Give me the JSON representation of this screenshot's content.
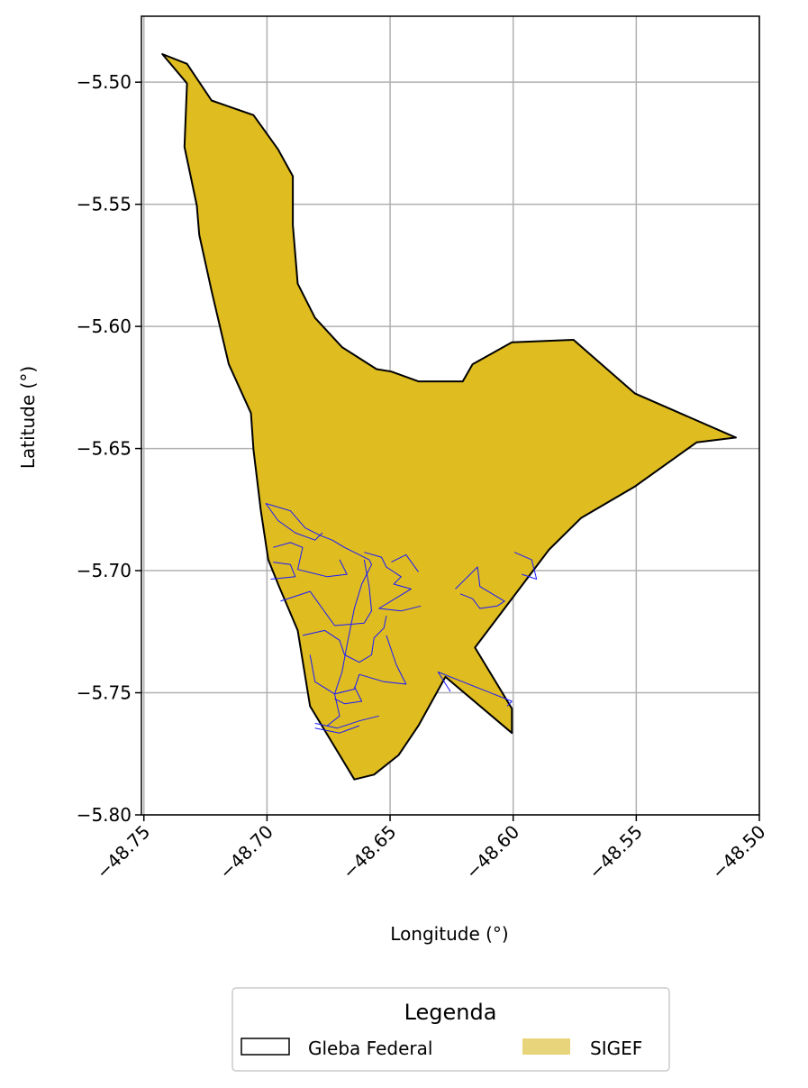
{
  "chart_data": {
    "type": "map",
    "title": "",
    "xlabel": "Longitude (°)",
    "ylabel": "Latitude (°)",
    "xlim": [
      -48.751,
      -48.5
    ],
    "ylim": [
      -5.8,
      -5.473
    ],
    "x_ticks": [
      -48.75,
      -48.7,
      -48.65,
      -48.6,
      -48.55,
      -48.5
    ],
    "x_tick_labels": [
      "−48.75",
      "−48.70",
      "−48.65",
      "−48.60",
      "−48.55",
      "−48.50"
    ],
    "y_ticks": [
      -5.5,
      -5.55,
      -5.6,
      -5.65,
      -5.7,
      -5.75,
      -5.8
    ],
    "y_tick_labels": [
      "−5.50",
      "−5.55",
      "−5.60",
      "−5.65",
      "−5.70",
      "−5.75",
      "−5.80"
    ],
    "grid": true,
    "legend": {
      "title": "Legenda",
      "placement": "bottom-center",
      "entries": [
        {
          "label": "Gleba Federal",
          "style": "outline",
          "edge_color": "#000000",
          "fill_color": "#ffffff"
        },
        {
          "label": "SIGEF",
          "style": "filled",
          "fill_color": "#e8d47a"
        }
      ]
    },
    "colors": {
      "gleba_fill": "#dfbc20",
      "gleba_edge": "#000000",
      "sigef_edge": "#1a1aff",
      "grid": "#b0b0b0"
    },
    "gleba_outline": [
      [
        -48.7425,
        -5.4885
      ],
      [
        -48.7325,
        -5.4925
      ],
      [
        -48.7225,
        -5.5075
      ],
      [
        -48.7055,
        -5.5135
      ],
      [
        -48.6955,
        -5.5275
      ],
      [
        -48.6895,
        -5.5385
      ],
      [
        -48.6895,
        -5.5585
      ],
      [
        -48.6875,
        -5.5825
      ],
      [
        -48.6805,
        -5.5965
      ],
      [
        -48.6695,
        -5.6085
      ],
      [
        -48.6555,
        -5.6175
      ],
      [
        -48.6495,
        -5.6185
      ],
      [
        -48.6385,
        -5.6225
      ],
      [
        -48.6205,
        -5.6225
      ],
      [
        -48.6165,
        -5.6155
      ],
      [
        -48.6005,
        -5.6065
      ],
      [
        -48.5755,
        -5.6055
      ],
      [
        -48.5505,
        -5.6275
      ],
      [
        -48.5095,
        -5.6455
      ],
      [
        -48.5255,
        -5.6475
      ],
      [
        -48.5505,
        -5.6655
      ],
      [
        -48.5725,
        -5.6785
      ],
      [
        -48.5855,
        -5.6915
      ],
      [
        -48.6155,
        -5.7315
      ],
      [
        -48.6005,
        -5.7565
      ],
      [
        -48.6005,
        -5.7665
      ],
      [
        -48.6275,
        -5.7435
      ],
      [
        -48.6385,
        -5.7635
      ],
      [
        -48.6465,
        -5.7755
      ],
      [
        -48.6565,
        -5.7835
      ],
      [
        -48.6645,
        -5.7855
      ],
      [
        -48.6825,
        -5.7555
      ],
      [
        -48.6875,
        -5.7245
      ],
      [
        -48.6955,
        -5.7055
      ],
      [
        -48.6995,
        -5.6955
      ],
      [
        -48.7025,
        -5.6755
      ],
      [
        -48.7055,
        -5.6505
      ],
      [
        -48.7065,
        -5.6355
      ],
      [
        -48.7155,
        -5.6155
      ],
      [
        -48.7225,
        -5.5855
      ],
      [
        -48.7275,
        -5.5625
      ],
      [
        -48.7285,
        -5.5505
      ],
      [
        -48.7335,
        -5.5265
      ],
      [
        -48.7325,
        -5.5005
      ]
    ],
    "sigef_parcels": [
      [
        [
          -48.7005,
          -5.6725
        ],
        [
          -48.6905,
          -5.6755
        ],
        [
          -48.6845,
          -5.6825
        ],
        [
          -48.6785,
          -5.6855
        ],
        [
          -48.6735,
          -5.6875
        ],
        [
          -48.6685,
          -5.6905
        ],
        [
          -48.6585,
          -5.6955
        ],
        [
          -48.6575,
          -5.6975
        ],
        [
          -48.6615,
          -5.7055
        ],
        [
          -48.6645,
          -5.7155
        ],
        [
          -48.6675,
          -5.7305
        ],
        [
          -48.6695,
          -5.7415
        ],
        [
          -48.6725,
          -5.7505
        ],
        [
          -48.6705,
          -5.7595
        ],
        [
          -48.6755,
          -5.7635
        ]
      ],
      [
        [
          -48.7005,
          -5.6725
        ],
        [
          -48.6955,
          -5.6795
        ],
        [
          -48.6885,
          -5.6845
        ],
        [
          -48.6805,
          -5.6875
        ],
        [
          -48.6775,
          -5.6845
        ]
      ],
      [
        [
          -48.6975,
          -5.6905
        ],
        [
          -48.6905,
          -5.6885
        ],
        [
          -48.6855,
          -5.6905
        ],
        [
          -48.6875,
          -5.6995
        ],
        [
          -48.6755,
          -5.7025
        ],
        [
          -48.6675,
          -5.7015
        ],
        [
          -48.6705,
          -5.6955
        ]
      ],
      [
        [
          -48.6975,
          -5.6965
        ],
        [
          -48.6905,
          -5.6975
        ],
        [
          -48.6885,
          -5.7025
        ],
        [
          -48.6985,
          -5.7035
        ]
      ],
      [
        [
          -48.6945,
          -5.7125
        ],
        [
          -48.6825,
          -5.7085
        ],
        [
          -48.6725,
          -5.7225
        ],
        [
          -48.6605,
          -5.7215
        ],
        [
          -48.6575,
          -5.7165
        ],
        [
          -48.6585,
          -5.7065
        ],
        [
          -48.6605,
          -5.6955
        ]
      ],
      [
        [
          -48.6855,
          -5.7265
        ],
        [
          -48.6765,
          -5.7245
        ],
        [
          -48.6705,
          -5.7285
        ],
        [
          -48.6685,
          -5.7345
        ],
        [
          -48.6625,
          -5.7375
        ],
        [
          -48.6575,
          -5.7345
        ],
        [
          -48.6565,
          -5.7275
        ],
        [
          -48.6525,
          -5.7235
        ],
        [
          -48.6515,
          -5.7185
        ]
      ],
      [
        [
          -48.6825,
          -5.7345
        ],
        [
          -48.6805,
          -5.7455
        ],
        [
          -48.6725,
          -5.7505
        ],
        [
          -48.6645,
          -5.7485
        ],
        [
          -48.6625,
          -5.7425
        ],
        [
          -48.6525,
          -5.7455
        ],
        [
          -48.6435,
          -5.7465
        ],
        [
          -48.6475,
          -5.7385
        ],
        [
          -48.6515,
          -5.7265
        ]
      ],
      [
        [
          -48.6645,
          -5.7475
        ],
        [
          -48.6615,
          -5.7535
        ],
        [
          -48.6685,
          -5.7545
        ],
        [
          -48.6725,
          -5.7525
        ]
      ],
      [
        [
          -48.6805,
          -5.7625
        ],
        [
          -48.6715,
          -5.7645
        ],
        [
          -48.6625,
          -5.7615
        ],
        [
          -48.6545,
          -5.7595
        ]
      ],
      [
        [
          -48.6805,
          -5.7645
        ],
        [
          -48.6705,
          -5.7665
        ],
        [
          -48.6625,
          -5.7635
        ]
      ],
      [
        [
          -48.6605,
          -5.6925
        ],
        [
          -48.6535,
          -5.6945
        ],
        [
          -48.6515,
          -5.6985
        ],
        [
          -48.6455,
          -5.7025
        ],
        [
          -48.6485,
          -5.7055
        ],
        [
          -48.6415,
          -5.7075
        ],
        [
          -48.6545,
          -5.7155
        ],
        [
          -48.6455,
          -5.7165
        ],
        [
          -48.6375,
          -5.7145
        ]
      ],
      [
        [
          -48.6385,
          -5.7005
        ],
        [
          -48.6435,
          -5.6935
        ],
        [
          -48.6495,
          -5.6965
        ]
      ],
      [
        [
          -48.6235,
          -5.7075
        ],
        [
          -48.6145,
          -5.6985
        ],
        [
          -48.6135,
          -5.7065
        ],
        [
          -48.6035,
          -5.7125
        ],
        [
          -48.6065,
          -5.7145
        ],
        [
          -48.6135,
          -5.7155
        ],
        [
          -48.6165,
          -5.7115
        ],
        [
          -48.6215,
          -5.7095
        ]
      ],
      [
        [
          -48.6255,
          -5.7495
        ],
        [
          -48.6305,
          -5.7415
        ],
        [
          -48.6105,
          -5.7495
        ],
        [
          -48.6005,
          -5.7535
        ],
        [
          -48.6025,
          -5.7555
        ]
      ],
      [
        [
          -48.5995,
          -5.6925
        ],
        [
          -48.5925,
          -5.6955
        ],
        [
          -48.5905,
          -5.7035
        ],
        [
          -48.5965,
          -5.7015
        ]
      ]
    ]
  }
}
